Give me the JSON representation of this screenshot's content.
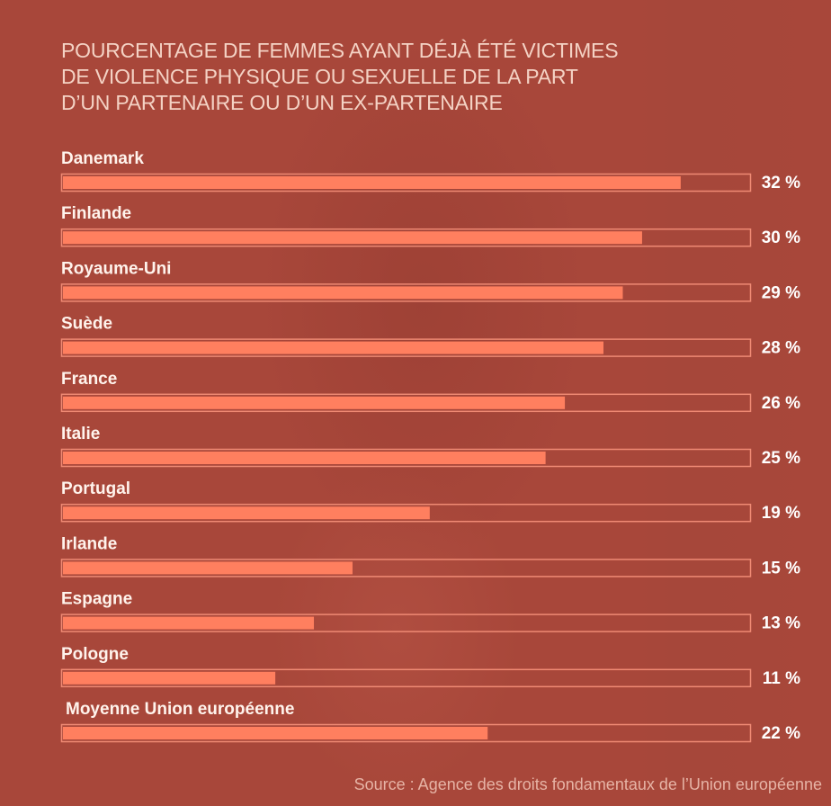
{
  "title_lines": [
    "POURCENTAGE DE FEMMES AYANT DÉJÀ ÉTÉ VICTIMES",
    "DE VIOLENCE PHYSIQUE OU SEXUELLE DE LA PART",
    "D’UN PARTENAIRE OU D’UN EX-PARTENAIRE"
  ],
  "source": "Source : Agence des droits fondamentaux de l’Union européenne",
  "colors": {
    "background": "#a8473a",
    "bar_fill": "#ff7f5f",
    "bar_track_border": "#ef8a74",
    "title": "#f4d2c4"
  },
  "chart_data": {
    "type": "bar",
    "orientation": "horizontal",
    "title": "POURCENTAGE DE FEMMES AYANT DÉJÀ ÉTÉ VICTIMES DE VIOLENCE PHYSIQUE OU SEXUELLE DE LA PART D’UN PARTENAIRE OU D’UN EX-PARTENAIRE",
    "categories": [
      "Danemark",
      "Finlande",
      "Royaume-Uni",
      "Suède",
      "France",
      "Italie",
      "Portugal",
      "Irlande",
      "Espagne",
      "Pologne",
      "Moyenne Union européenne"
    ],
    "values": [
      32,
      30,
      29,
      28,
      26,
      25,
      19,
      15,
      13,
      11,
      22
    ],
    "value_labels": [
      "32 %",
      "30 %",
      "29 %",
      "28 %",
      "26 %",
      "25 %",
      "19 %",
      "15 %",
      "13 %",
      "11 %",
      "22 %"
    ],
    "xlim": [
      0,
      35.5
    ],
    "grid": false,
    "legend": "none"
  }
}
